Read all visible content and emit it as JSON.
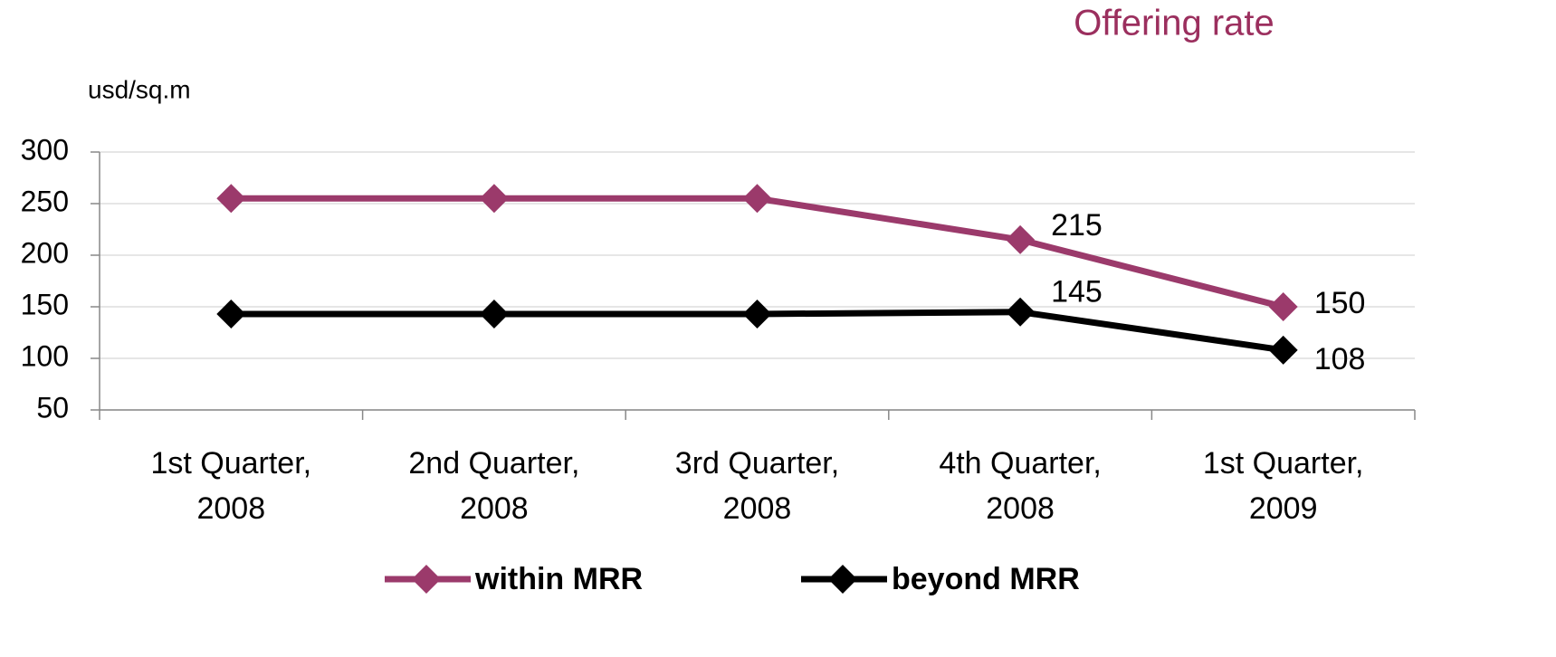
{
  "chart_data": {
    "type": "line",
    "title": "Offering rate",
    "y_label": "usd/sq.m",
    "categories": [
      "1st Quarter, 2008",
      "2nd Quarter, 2008",
      "3rd Quarter, 2008",
      "4th Quarter, 2008",
      "1st Quarter, 2009"
    ],
    "series": [
      {
        "name": "within MRR",
        "color": "#9b3a6b",
        "values": [
          255,
          255,
          255,
          215,
          150
        ]
      },
      {
        "name": "beyond MRR",
        "color": "#000000",
        "values": [
          143,
          143,
          143,
          145,
          108
        ]
      }
    ],
    "ylim": [
      50,
      300
    ],
    "yticks": [
      50,
      100,
      150,
      200,
      250,
      300
    ],
    "grid": true,
    "legend": "bottom"
  }
}
